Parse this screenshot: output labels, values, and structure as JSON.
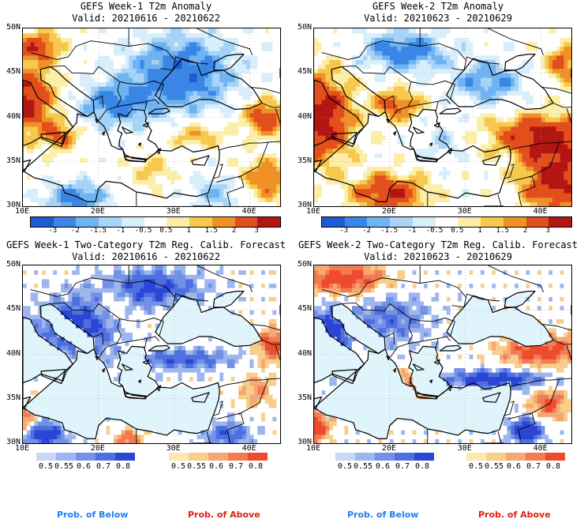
{
  "panels": [
    {
      "title1": "GEFS Week-1 T2m Anomaly",
      "title2": "Valid: 20210616 - 20210622"
    },
    {
      "title1": "GEFS Week-2 T2m Anomaly",
      "title2": "Valid: 20210623 - 20210629"
    },
    {
      "title1": "GEFS Week-1 Two-Category T2m Reg. Calib. Forecast",
      "title2": "Valid: 20210616 - 20210622"
    },
    {
      "title1": "GEFS Week-2 Two-Category T2m Reg. Calib. Forecast",
      "title2": "Valid: 20210623 - 20210629"
    }
  ],
  "axes": {
    "lat_labels": [
      "50N",
      "45N",
      "40N",
      "35N",
      "30N"
    ],
    "lon_labels": [
      "10E",
      "20E",
      "30E",
      "40E"
    ]
  },
  "anomaly_colorbar": {
    "labels": [
      "-3",
      "-2",
      "-1.5",
      "-1",
      "-0.5",
      "0.5",
      "1",
      "1.5",
      "2",
      "3"
    ],
    "colors": [
      "#1e5bd2",
      "#3a86e6",
      "#6fb3f2",
      "#a6d3f7",
      "#d8eefb",
      "#ffffff",
      "#fbeea8",
      "#f7c84e",
      "#f09128",
      "#e24f1d",
      "#b31612"
    ]
  },
  "prob_legend": {
    "below_title": "Prob. of Below",
    "above_title": "Prob. of Above",
    "labels": [
      "0.5",
      "0.55",
      "0.6",
      "0.7",
      "0.8"
    ],
    "below_colors": [
      "#c9d6f6",
      "#9db6ee",
      "#7391e6",
      "#4d6fe0",
      "#2b45d4"
    ],
    "above_colors": [
      "#fbe9b0",
      "#f8cf8a",
      "#f5a873",
      "#f27b52",
      "#ee4a2e"
    ],
    "below_title_color": "#1f7ff0",
    "above_title_color": "#e02010"
  }
}
